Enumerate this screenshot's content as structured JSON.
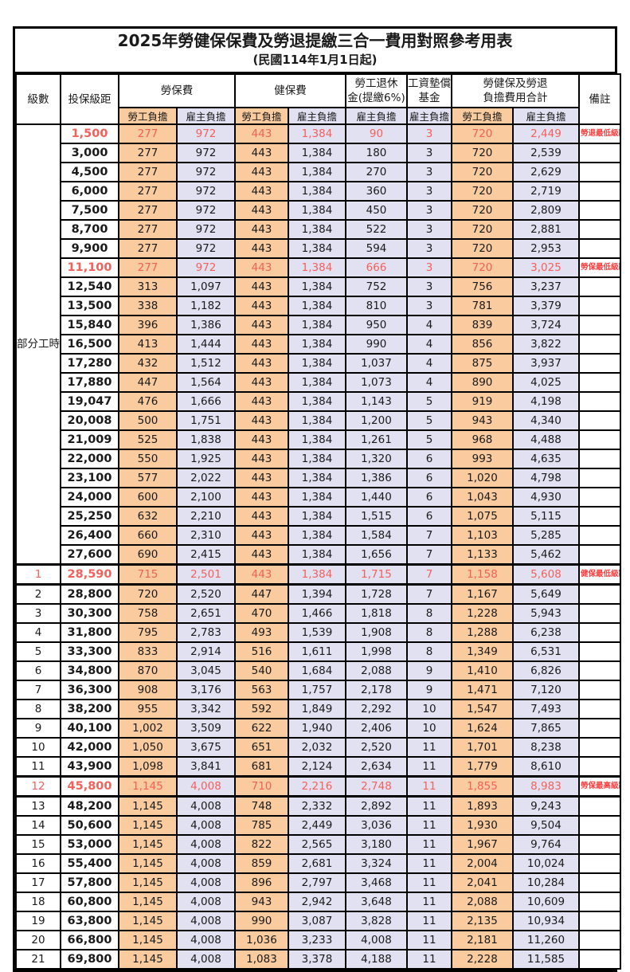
{
  "title": "2025年勞健保保費及勞退提繳三合一費用對照參考用表",
  "subtitle": "(民國114年1月1日起)",
  "colors": {
    "employee_bg": "#F9CB9E",
    "employer_bg": "#E2E1F2",
    "highlight_text": "#F4605A",
    "remark_text": "#FF4040",
    "border": "#000000"
  },
  "header": {
    "level": "級數",
    "bracket": "投保級距",
    "labor_group": "勞保費",
    "health_group": "健保費",
    "pension_line1": "勞工退休",
    "pension_line2": "金(提繳6%)",
    "fund_line1": "工資墊償",
    "fund_line2": "基金",
    "total_line1": "勞健保及勞退",
    "total_line2": "負擔費用合計",
    "remark": "備註",
    "sub_employee": "勞工負擔",
    "sub_employer": "雇主負擔"
  },
  "part_time_label": "部分工時",
  "rows": [
    {
      "part_time": true,
      "level": "",
      "bracket": "1,500",
      "labor_emp": "277",
      "labor_er": "972",
      "health_emp": "443",
      "health_er": "1,384",
      "pension_er": "90",
      "fund_er": "3",
      "total_emp": "720",
      "total_er": "2,449",
      "remark": "勞退最低級距",
      "highlight": true,
      "thick": false
    },
    {
      "part_time": true,
      "level": "",
      "bracket": "3,000",
      "labor_emp": "277",
      "labor_er": "972",
      "health_emp": "443",
      "health_er": "1,384",
      "pension_er": "180",
      "fund_er": "3",
      "total_emp": "720",
      "total_er": "2,539",
      "remark": "",
      "highlight": false,
      "thick": false
    },
    {
      "part_time": true,
      "level": "",
      "bracket": "4,500",
      "labor_emp": "277",
      "labor_er": "972",
      "health_emp": "443",
      "health_er": "1,384",
      "pension_er": "270",
      "fund_er": "3",
      "total_emp": "720",
      "total_er": "2,629",
      "remark": "",
      "highlight": false,
      "thick": false
    },
    {
      "part_time": true,
      "level": "",
      "bracket": "6,000",
      "labor_emp": "277",
      "labor_er": "972",
      "health_emp": "443",
      "health_er": "1,384",
      "pension_er": "360",
      "fund_er": "3",
      "total_emp": "720",
      "total_er": "2,719",
      "remark": "",
      "highlight": false,
      "thick": false
    },
    {
      "part_time": true,
      "level": "",
      "bracket": "7,500",
      "labor_emp": "277",
      "labor_er": "972",
      "health_emp": "443",
      "health_er": "1,384",
      "pension_er": "450",
      "fund_er": "3",
      "total_emp": "720",
      "total_er": "2,809",
      "remark": "",
      "highlight": false,
      "thick": false
    },
    {
      "part_time": true,
      "level": "",
      "bracket": "8,700",
      "labor_emp": "277",
      "labor_er": "972",
      "health_emp": "443",
      "health_er": "1,384",
      "pension_er": "522",
      "fund_er": "3",
      "total_emp": "720",
      "total_er": "2,881",
      "remark": "",
      "highlight": false,
      "thick": false
    },
    {
      "part_time": true,
      "level": "",
      "bracket": "9,900",
      "labor_emp": "277",
      "labor_er": "972",
      "health_emp": "443",
      "health_er": "1,384",
      "pension_er": "594",
      "fund_er": "3",
      "total_emp": "720",
      "total_er": "2,953",
      "remark": "",
      "highlight": false,
      "thick": false
    },
    {
      "part_time": true,
      "level": "",
      "bracket": "11,100",
      "labor_emp": "277",
      "labor_er": "972",
      "health_emp": "443",
      "health_er": "1,384",
      "pension_er": "666",
      "fund_er": "3",
      "total_emp": "720",
      "total_er": "3,025",
      "remark": "勞保最低級距",
      "highlight": true,
      "thick": false
    },
    {
      "part_time": true,
      "level": "",
      "bracket": "12,540",
      "labor_emp": "313",
      "labor_er": "1,097",
      "health_emp": "443",
      "health_er": "1,384",
      "pension_er": "752",
      "fund_er": "3",
      "total_emp": "756",
      "total_er": "3,237",
      "remark": "",
      "highlight": false,
      "thick": false
    },
    {
      "part_time": true,
      "level": "",
      "bracket": "13,500",
      "labor_emp": "338",
      "labor_er": "1,182",
      "health_emp": "443",
      "health_er": "1,384",
      "pension_er": "810",
      "fund_er": "3",
      "total_emp": "781",
      "total_er": "3,379",
      "remark": "",
      "highlight": false,
      "thick": false
    },
    {
      "part_time": true,
      "level": "",
      "bracket": "15,840",
      "labor_emp": "396",
      "labor_er": "1,386",
      "health_emp": "443",
      "health_er": "1,384",
      "pension_er": "950",
      "fund_er": "4",
      "total_emp": "839",
      "total_er": "3,724",
      "remark": "",
      "highlight": false,
      "thick": false
    },
    {
      "part_time": true,
      "level": "",
      "bracket": "16,500",
      "labor_emp": "413",
      "labor_er": "1,444",
      "health_emp": "443",
      "health_er": "1,384",
      "pension_er": "990",
      "fund_er": "4",
      "total_emp": "856",
      "total_er": "3,822",
      "remark": "",
      "highlight": false,
      "thick": false
    },
    {
      "part_time": true,
      "level": "",
      "bracket": "17,280",
      "labor_emp": "432",
      "labor_er": "1,512",
      "health_emp": "443",
      "health_er": "1,384",
      "pension_er": "1,037",
      "fund_er": "4",
      "total_emp": "875",
      "total_er": "3,937",
      "remark": "",
      "highlight": false,
      "thick": false
    },
    {
      "part_time": true,
      "level": "",
      "bracket": "17,880",
      "labor_emp": "447",
      "labor_er": "1,564",
      "health_emp": "443",
      "health_er": "1,384",
      "pension_er": "1,073",
      "fund_er": "4",
      "total_emp": "890",
      "total_er": "4,025",
      "remark": "",
      "highlight": false,
      "thick": false
    },
    {
      "part_time": true,
      "level": "",
      "bracket": "19,047",
      "labor_emp": "476",
      "labor_er": "1,666",
      "health_emp": "443",
      "health_er": "1,384",
      "pension_er": "1,143",
      "fund_er": "5",
      "total_emp": "919",
      "total_er": "4,198",
      "remark": "",
      "highlight": false,
      "thick": false
    },
    {
      "part_time": true,
      "level": "",
      "bracket": "20,008",
      "labor_emp": "500",
      "labor_er": "1,751",
      "health_emp": "443",
      "health_er": "1,384",
      "pension_er": "1,200",
      "fund_er": "5",
      "total_emp": "943",
      "total_er": "4,340",
      "remark": "",
      "highlight": false,
      "thick": false
    },
    {
      "part_time": true,
      "level": "",
      "bracket": "21,009",
      "labor_emp": "525",
      "labor_er": "1,838",
      "health_emp": "443",
      "health_er": "1,384",
      "pension_er": "1,261",
      "fund_er": "5",
      "total_emp": "968",
      "total_er": "4,488",
      "remark": "",
      "highlight": false,
      "thick": false
    },
    {
      "part_time": true,
      "level": "",
      "bracket": "22,000",
      "labor_emp": "550",
      "labor_er": "1,925",
      "health_emp": "443",
      "health_er": "1,384",
      "pension_er": "1,320",
      "fund_er": "6",
      "total_emp": "993",
      "total_er": "4,635",
      "remark": "",
      "highlight": false,
      "thick": false
    },
    {
      "part_time": true,
      "level": "",
      "bracket": "23,100",
      "labor_emp": "577",
      "labor_er": "2,022",
      "health_emp": "443",
      "health_er": "1,384",
      "pension_er": "1,386",
      "fund_er": "6",
      "total_emp": "1,020",
      "total_er": "4,798",
      "remark": "",
      "highlight": false,
      "thick": false
    },
    {
      "part_time": true,
      "level": "",
      "bracket": "24,000",
      "labor_emp": "600",
      "labor_er": "2,100",
      "health_emp": "443",
      "health_er": "1,384",
      "pension_er": "1,440",
      "fund_er": "6",
      "total_emp": "1,043",
      "total_er": "4,930",
      "remark": "",
      "highlight": false,
      "thick": false
    },
    {
      "part_time": true,
      "level": "",
      "bracket": "25,250",
      "labor_emp": "632",
      "labor_er": "2,210",
      "health_emp": "443",
      "health_er": "1,384",
      "pension_er": "1,515",
      "fund_er": "6",
      "total_emp": "1,075",
      "total_er": "5,115",
      "remark": "",
      "highlight": false,
      "thick": false
    },
    {
      "part_time": true,
      "level": "",
      "bracket": "26,400",
      "labor_emp": "660",
      "labor_er": "2,310",
      "health_emp": "443",
      "health_er": "1,384",
      "pension_er": "1,584",
      "fund_er": "7",
      "total_emp": "1,103",
      "total_er": "5,285",
      "remark": "",
      "highlight": false,
      "thick": false
    },
    {
      "part_time": true,
      "level": "",
      "bracket": "27,600",
      "labor_emp": "690",
      "labor_er": "2,415",
      "health_emp": "443",
      "health_er": "1,384",
      "pension_er": "1,656",
      "fund_er": "7",
      "total_emp": "1,133",
      "total_er": "5,462",
      "remark": "",
      "highlight": false,
      "thick": false
    },
    {
      "part_time": false,
      "level": "1",
      "bracket": "28,590",
      "labor_emp": "715",
      "labor_er": "2,501",
      "health_emp": "443",
      "health_er": "1,384",
      "pension_er": "1,715",
      "fund_er": "7",
      "total_emp": "1,158",
      "total_er": "5,608",
      "remark": "健保最低級距",
      "highlight": true,
      "thick": true
    },
    {
      "part_time": false,
      "level": "2",
      "bracket": "28,800",
      "labor_emp": "720",
      "labor_er": "2,520",
      "health_emp": "447",
      "health_er": "1,394",
      "pension_er": "1,728",
      "fund_er": "7",
      "total_emp": "1,167",
      "total_er": "5,649",
      "remark": "",
      "highlight": false,
      "thick": false
    },
    {
      "part_time": false,
      "level": "3",
      "bracket": "30,300",
      "labor_emp": "758",
      "labor_er": "2,651",
      "health_emp": "470",
      "health_er": "1,466",
      "pension_er": "1,818",
      "fund_er": "8",
      "total_emp": "1,228",
      "total_er": "5,943",
      "remark": "",
      "highlight": false,
      "thick": false
    },
    {
      "part_time": false,
      "level": "4",
      "bracket": "31,800",
      "labor_emp": "795",
      "labor_er": "2,783",
      "health_emp": "493",
      "health_er": "1,539",
      "pension_er": "1,908",
      "fund_er": "8",
      "total_emp": "1,288",
      "total_er": "6,238",
      "remark": "",
      "highlight": false,
      "thick": false
    },
    {
      "part_time": false,
      "level": "5",
      "bracket": "33,300",
      "labor_emp": "833",
      "labor_er": "2,914",
      "health_emp": "516",
      "health_er": "1,611",
      "pension_er": "1,998",
      "fund_er": "8",
      "total_emp": "1,349",
      "total_er": "6,531",
      "remark": "",
      "highlight": false,
      "thick": false
    },
    {
      "part_time": false,
      "level": "6",
      "bracket": "34,800",
      "labor_emp": "870",
      "labor_er": "3,045",
      "health_emp": "540",
      "health_er": "1,684",
      "pension_er": "2,088",
      "fund_er": "9",
      "total_emp": "1,410",
      "total_er": "6,826",
      "remark": "",
      "highlight": false,
      "thick": false
    },
    {
      "part_time": false,
      "level": "7",
      "bracket": "36,300",
      "labor_emp": "908",
      "labor_er": "3,176",
      "health_emp": "563",
      "health_er": "1,757",
      "pension_er": "2,178",
      "fund_er": "9",
      "total_emp": "1,471",
      "total_er": "7,120",
      "remark": "",
      "highlight": false,
      "thick": false
    },
    {
      "part_time": false,
      "level": "8",
      "bracket": "38,200",
      "labor_emp": "955",
      "labor_er": "3,342",
      "health_emp": "592",
      "health_er": "1,849",
      "pension_er": "2,292",
      "fund_er": "10",
      "total_emp": "1,547",
      "total_er": "7,493",
      "remark": "",
      "highlight": false,
      "thick": false
    },
    {
      "part_time": false,
      "level": "9",
      "bracket": "40,100",
      "labor_emp": "1,002",
      "labor_er": "3,509",
      "health_emp": "622",
      "health_er": "1,940",
      "pension_er": "2,406",
      "fund_er": "10",
      "total_emp": "1,624",
      "total_er": "7,865",
      "remark": "",
      "highlight": false,
      "thick": false
    },
    {
      "part_time": false,
      "level": "10",
      "bracket": "42,000",
      "labor_emp": "1,050",
      "labor_er": "3,675",
      "health_emp": "651",
      "health_er": "2,032",
      "pension_er": "2,520",
      "fund_er": "11",
      "total_emp": "1,701",
      "total_er": "8,238",
      "remark": "",
      "highlight": false,
      "thick": false
    },
    {
      "part_time": false,
      "level": "11",
      "bracket": "43,900",
      "labor_emp": "1,098",
      "labor_er": "3,841",
      "health_emp": "681",
      "health_er": "2,124",
      "pension_er": "2,634",
      "fund_er": "11",
      "total_emp": "1,779",
      "total_er": "8,610",
      "remark": "",
      "highlight": false,
      "thick": false
    },
    {
      "part_time": false,
      "level": "12",
      "bracket": "45,800",
      "labor_emp": "1,145",
      "labor_er": "4,008",
      "health_emp": "710",
      "health_er": "2,216",
      "pension_er": "2,748",
      "fund_er": "11",
      "total_emp": "1,855",
      "total_er": "8,983",
      "remark": "勞保最高級距",
      "highlight": true,
      "thick": true
    },
    {
      "part_time": false,
      "level": "13",
      "bracket": "48,200",
      "labor_emp": "1,145",
      "labor_er": "4,008",
      "health_emp": "748",
      "health_er": "2,332",
      "pension_er": "2,892",
      "fund_er": "11",
      "total_emp": "1,893",
      "total_er": "9,243",
      "remark": "",
      "highlight": false,
      "thick": false
    },
    {
      "part_time": false,
      "level": "14",
      "bracket": "50,600",
      "labor_emp": "1,145",
      "labor_er": "4,008",
      "health_emp": "785",
      "health_er": "2,449",
      "pension_er": "3,036",
      "fund_er": "11",
      "total_emp": "1,930",
      "total_er": "9,504",
      "remark": "",
      "highlight": false,
      "thick": false
    },
    {
      "part_time": false,
      "level": "15",
      "bracket": "53,000",
      "labor_emp": "1,145",
      "labor_er": "4,008",
      "health_emp": "822",
      "health_er": "2,565",
      "pension_er": "3,180",
      "fund_er": "11",
      "total_emp": "1,967",
      "total_er": "9,764",
      "remark": "",
      "highlight": false,
      "thick": false
    },
    {
      "part_time": false,
      "level": "16",
      "bracket": "55,400",
      "labor_emp": "1,145",
      "labor_er": "4,008",
      "health_emp": "859",
      "health_er": "2,681",
      "pension_er": "3,324",
      "fund_er": "11",
      "total_emp": "2,004",
      "total_er": "10,024",
      "remark": "",
      "highlight": false,
      "thick": false
    },
    {
      "part_time": false,
      "level": "17",
      "bracket": "57,800",
      "labor_emp": "1,145",
      "labor_er": "4,008",
      "health_emp": "896",
      "health_er": "2,797",
      "pension_er": "3,468",
      "fund_er": "11",
      "total_emp": "2,041",
      "total_er": "10,284",
      "remark": "",
      "highlight": false,
      "thick": false
    },
    {
      "part_time": false,
      "level": "18",
      "bracket": "60,800",
      "labor_emp": "1,145",
      "labor_er": "4,008",
      "health_emp": "943",
      "health_er": "2,942",
      "pension_er": "3,648",
      "fund_er": "11",
      "total_emp": "2,088",
      "total_er": "10,609",
      "remark": "",
      "highlight": false,
      "thick": false
    },
    {
      "part_time": false,
      "level": "19",
      "bracket": "63,800",
      "labor_emp": "1,145",
      "labor_er": "4,008",
      "health_emp": "990",
      "health_er": "3,087",
      "pension_er": "3,828",
      "fund_er": "11",
      "total_emp": "2,135",
      "total_er": "10,934",
      "remark": "",
      "highlight": false,
      "thick": false
    },
    {
      "part_time": false,
      "level": "20",
      "bracket": "66,800",
      "labor_emp": "1,145",
      "labor_er": "4,008",
      "health_emp": "1,036",
      "health_er": "3,233",
      "pension_er": "4,008",
      "fund_er": "11",
      "total_emp": "2,181",
      "total_er": "11,260",
      "remark": "",
      "highlight": false,
      "thick": false
    },
    {
      "part_time": false,
      "level": "21",
      "bracket": "69,800",
      "labor_emp": "1,145",
      "labor_er": "4,008",
      "health_emp": "1,083",
      "health_er": "3,378",
      "pension_er": "4,188",
      "fund_er": "11",
      "total_emp": "2,228",
      "total_er": "11,585",
      "remark": "",
      "highlight": false,
      "thick": false
    }
  ]
}
